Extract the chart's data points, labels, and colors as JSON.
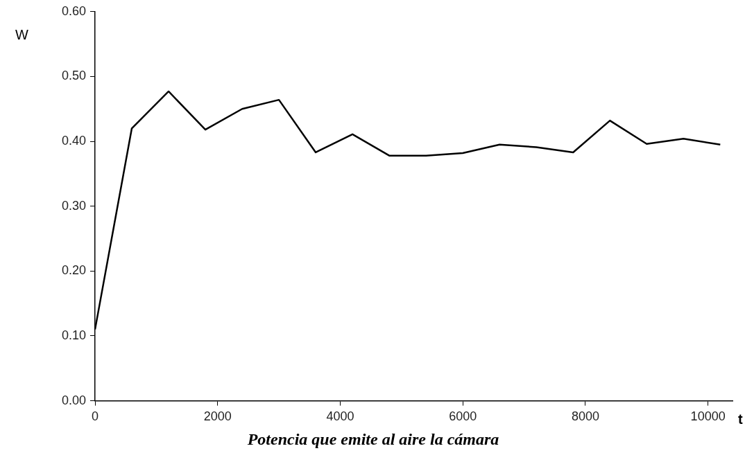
{
  "chart_data": {
    "type": "line",
    "title": "Potencia que emite al aire la cámara",
    "xlabel": "t",
    "ylabel": "W",
    "x": [
      0,
      600,
      1200,
      1800,
      2400,
      3000,
      3600,
      4200,
      4800,
      5400,
      6000,
      6600,
      7200,
      7800,
      8400,
      9000,
      9600,
      10200
    ],
    "series": [
      {
        "color": "#000000",
        "values": [
          0.11,
          0.42,
          0.477,
          0.418,
          0.45,
          0.464,
          0.383,
          0.411,
          0.378,
          0.378,
          0.382,
          0.395,
          0.391,
          0.383,
          0.432,
          0.396,
          0.404,
          0.395
        ]
      }
    ],
    "xlim": [
      0,
      10400
    ],
    "xticks": [
      0,
      2000,
      4000,
      6000,
      8000,
      10000
    ],
    "ylim": [
      0,
      0.6
    ],
    "yticks": [
      {
        "value": 0,
        "label": "0.00"
      },
      {
        "value": 0.1,
        "label": "0.10"
      },
      {
        "value": 0.2,
        "label": "0.20"
      },
      {
        "value": 0.3,
        "label": "0.30"
      },
      {
        "value": 0.4,
        "label": "0.40"
      },
      {
        "value": 0.5,
        "label": "0.50"
      },
      {
        "value": 0.6,
        "label": "0.60"
      }
    ],
    "grid": false,
    "legend": false,
    "marker": "none",
    "line_style": "solid"
  }
}
